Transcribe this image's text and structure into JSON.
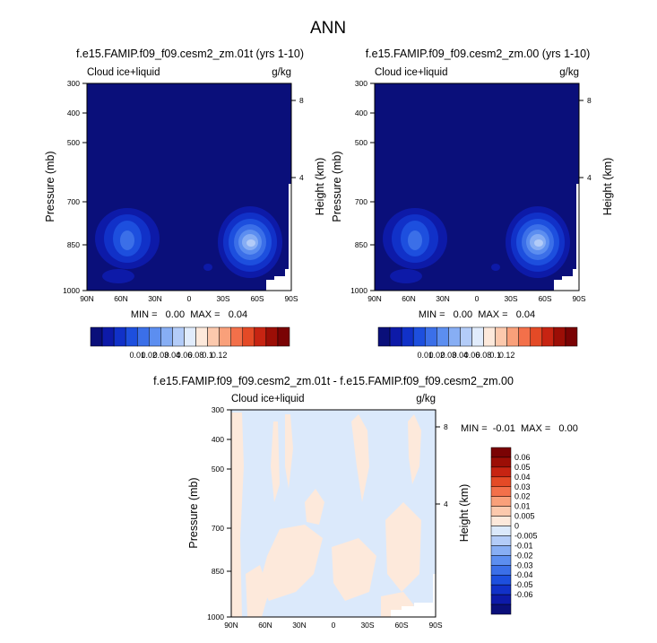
{
  "figure": {
    "title": "ANN"
  },
  "colors": {
    "abs_levels": [
      "#0a0f7a",
      "#0d1aa8",
      "#1131c8",
      "#1d4fde",
      "#3b6fe8",
      "#5c8ef0",
      "#87aef4",
      "#b3ccf8",
      "#e1ecfc",
      "#fde9db",
      "#fcc9ad",
      "#f9a07a",
      "#f3704a",
      "#e44a26",
      "#c72412",
      "#9c0e06",
      "#7a0304"
    ],
    "diff_levels": [
      "#0a0f7a",
      "#0d1aa8",
      "#1131c8",
      "#1d4fde",
      "#3b6fe8",
      "#5c8ef0",
      "#87aef4",
      "#b3ccf8",
      "#dbe9fb",
      "#fde9db",
      "#fcc9ad",
      "#f9a07a",
      "#f3704a",
      "#e44a26",
      "#c72412",
      "#9c0e06",
      "#7a0304"
    ]
  },
  "chart_data": [
    {
      "type": "heatmap",
      "title": "f.e15.FAMIP.f09_f09.cesm2_zm.01t (yrs 1-10)",
      "left_label": "Cloud ice+liquid",
      "units": "g/kg",
      "ylabel": "Pressure (mb)",
      "ylabel_right": "Height (km)",
      "x_ticks": [
        "90N",
        "60N",
        "30N",
        "0",
        "30S",
        "60S",
        "90S"
      ],
      "y_ticks": [
        "300",
        "400",
        "500",
        "700",
        "850",
        "1000"
      ],
      "y_right_ticks": [
        "8",
        "4"
      ],
      "stats": "MIN =   0.00  MAX =   0.04",
      "colorbar_labels": [
        "0.01",
        "0.02",
        "0.03",
        "0.04",
        "0.06",
        "0.08",
        "0.1",
        "0.12"
      ]
    },
    {
      "type": "heatmap",
      "title": "f.e15.FAMIP.f09_f09.cesm2_zm.00 (yrs 1-10)",
      "left_label": "Cloud ice+liquid",
      "units": "g/kg",
      "ylabel": "Pressure (mb)",
      "ylabel_right": "Height (km)",
      "x_ticks": [
        "90N",
        "60N",
        "30N",
        "0",
        "30S",
        "60S",
        "90S"
      ],
      "y_ticks": [
        "300",
        "400",
        "500",
        "700",
        "850",
        "1000"
      ],
      "y_right_ticks": [
        "8",
        "4"
      ],
      "stats": "MIN =   0.00  MAX =   0.04",
      "colorbar_labels": [
        "0.01",
        "0.02",
        "0.03",
        "0.04",
        "0.06",
        "0.08",
        "0.1",
        "0.12"
      ]
    },
    {
      "type": "heatmap",
      "title": "f.e15.FAMIP.f09_f09.cesm2_zm.01t - f.e15.FAMIP.f09_f09.cesm2_zm.00",
      "left_label": "Cloud ice+liquid",
      "units": "g/kg",
      "ylabel": "Pressure (mb)",
      "ylabel_right": "Height (km)",
      "x_ticks": [
        "90N",
        "60N",
        "30N",
        "0",
        "30S",
        "60S",
        "90S"
      ],
      "y_ticks": [
        "300",
        "400",
        "500",
        "700",
        "850",
        "1000"
      ],
      "y_right_ticks": [
        "8",
        "4"
      ],
      "stats": "MIN =  -0.01  MAX =   0.00",
      "colorbar_labels": [
        "0.06",
        "0.05",
        "0.04",
        "0.03",
        "0.02",
        "0.01",
        "0.005",
        "0",
        "-0.005",
        "-0.01",
        "-0.02",
        "-0.03",
        "-0.04",
        "-0.05",
        "-0.06"
      ]
    }
  ]
}
